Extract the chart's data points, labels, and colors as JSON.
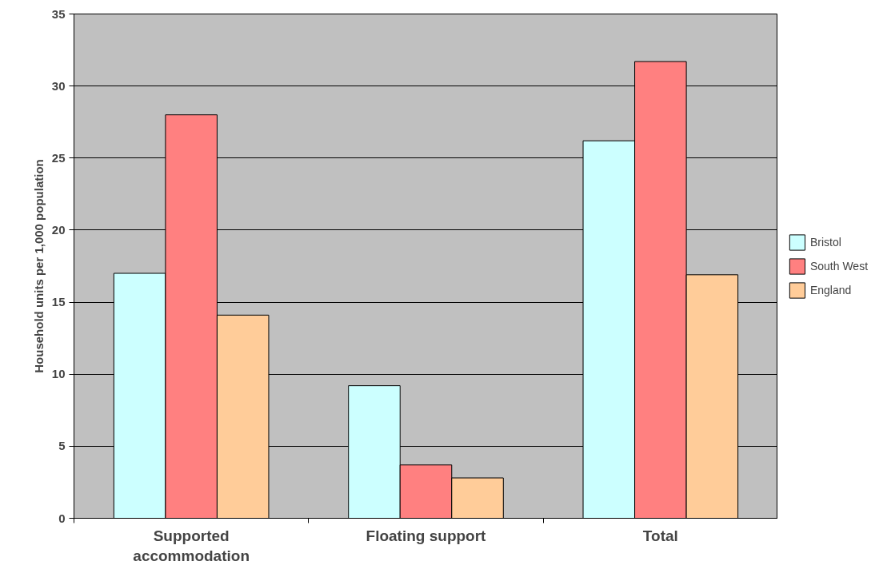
{
  "chart_data": {
    "type": "bar",
    "ylabel": "Household units per 1,000 population",
    "categories": [
      "Supported accommodation",
      "Floating support",
      "Total"
    ],
    "series": [
      {
        "name": "Bristol",
        "color": "#ccffff",
        "values": [
          17.0,
          9.2,
          26.2
        ]
      },
      {
        "name": "South West",
        "color": "#ff8080",
        "values": [
          28.0,
          3.7,
          31.7
        ]
      },
      {
        "name": "England",
        "color": "#ffcc99",
        "values": [
          14.1,
          2.8,
          16.9
        ]
      }
    ],
    "ylim": [
      0,
      35
    ],
    "yticks": [
      0,
      5,
      10,
      15,
      20,
      25,
      30,
      35
    ],
    "grid": "y",
    "legend": "right"
  }
}
